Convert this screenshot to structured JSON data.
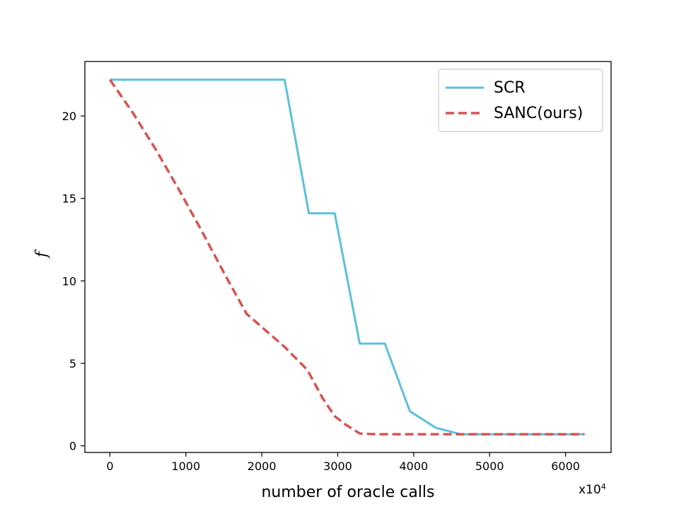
{
  "chart_data": {
    "type": "line",
    "title": "",
    "xlabel": "number of oracle calls",
    "ylabel": "f",
    "x_multiplier": {
      "base": "x10",
      "exponent": "4"
    },
    "xlim": [
      -330,
      6600
    ],
    "ylim": [
      -0.4,
      23.3
    ],
    "xticks": [
      0,
      1000,
      2000,
      3000,
      4000,
      5000,
      6000
    ],
    "yticks": [
      0,
      5,
      10,
      15,
      20
    ],
    "grid": false,
    "legend_position": "top-right",
    "series": [
      {
        "name": "SCR",
        "color": "#5bc0de",
        "style": "solid",
        "x": [
          0,
          2300,
          2620,
          2960,
          3290,
          3620,
          3950,
          4290,
          4620,
          6250
        ],
        "y": [
          22.2,
          22.2,
          14.1,
          14.1,
          6.2,
          6.2,
          2.1,
          1.1,
          0.7,
          0.7
        ]
      },
      {
        "name": "SANC(ours)",
        "color": "#d9534f",
        "style": "dashed",
        "x": [
          0,
          300,
          600,
          900,
          1200,
          1500,
          1800,
          2100,
          2300,
          2600,
          2800,
          2960,
          3100,
          3290,
          3500,
          4000,
          5000,
          6250
        ],
        "y": [
          22.2,
          20.2,
          18.0,
          15.6,
          13.1,
          10.5,
          8.0,
          6.8,
          6.0,
          4.6,
          2.9,
          1.8,
          1.3,
          0.75,
          0.7,
          0.7,
          0.7,
          0.7
        ]
      }
    ]
  }
}
